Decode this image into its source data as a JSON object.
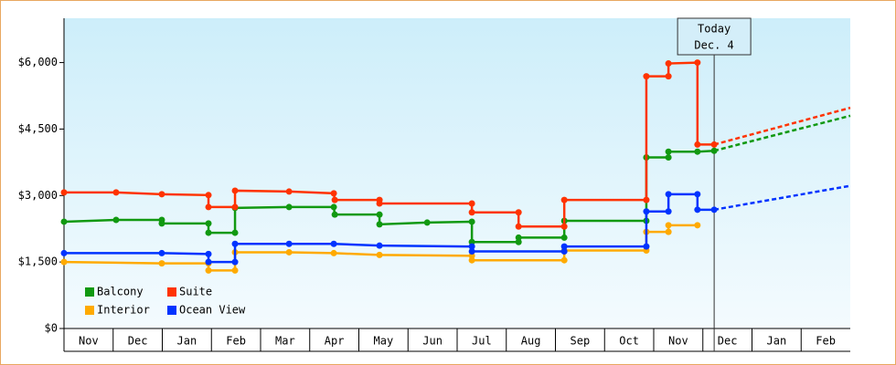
{
  "chart_data": {
    "type": "line",
    "categories": [
      "Nov",
      "Dec",
      "Jan",
      "Feb",
      "Mar",
      "Apr",
      "May",
      "Jun",
      "Jul",
      "Aug",
      "Sep",
      "Oct",
      "Nov",
      "Dec",
      "Jan",
      "Feb"
    ],
    "xlim": [
      0,
      16
    ],
    "ylim": [
      0,
      7000
    ],
    "yticks": [
      {
        "value": 0,
        "label": "$0"
      },
      {
        "value": 1500,
        "label": "$1,500"
      },
      {
        "value": 3000,
        "label": "$3,000"
      },
      {
        "value": 4500,
        "label": "$4,500"
      },
      {
        "value": 6000,
        "label": "$6,000"
      }
    ],
    "legend": "lower left",
    "annotation": {
      "x": 13.23,
      "lines": [
        "Today",
        "Dec. 4"
      ]
    },
    "series": [
      {
        "name": "Balcony",
        "color": "#119911",
        "x": [
          0,
          1.06,
          1.99,
          1.99,
          2.94,
          2.94,
          3.48,
          3.48,
          4.58,
          5.49,
          5.51,
          6.42,
          6.42,
          7.39,
          8.3,
          8.3,
          9.25,
          9.25,
          10.18,
          10.18,
          11.85,
          11.85,
          12.3,
          12.3,
          12.89,
          13.23
        ],
        "values": [
          2410,
          2450,
          2450,
          2370,
          2370,
          2160,
          2160,
          2720,
          2740,
          2740,
          2570,
          2570,
          2350,
          2390,
          2410,
          1950,
          1950,
          2050,
          2050,
          2430,
          2430,
          3860,
          3860,
          3990,
          3990,
          4010
        ],
        "projection_x": [
          13.23,
          16
        ],
        "projection_values": [
          4010,
          4800
        ]
      },
      {
        "name": "Suite",
        "color": "#ff3300",
        "x": [
          0,
          1.06,
          1.99,
          2.94,
          2.94,
          3.48,
          3.48,
          4.58,
          5.49,
          5.51,
          6.42,
          6.42,
          8.3,
          8.3,
          9.25,
          9.25,
          10.18,
          10.18,
          11.85,
          11.85,
          12.3,
          12.3,
          12.89,
          12.89,
          13.23
        ],
        "values": [
          3070,
          3070,
          3030,
          3010,
          2740,
          2740,
          3110,
          3090,
          3050,
          2900,
          2900,
          2820,
          2820,
          2620,
          2620,
          2300,
          2300,
          2900,
          2900,
          5690,
          5690,
          5980,
          6000,
          4150,
          4150
        ],
        "projection_x": [
          13.23,
          16
        ],
        "projection_values": [
          4150,
          4980
        ]
      },
      {
        "name": "Interior",
        "color": "#ffaa00",
        "x": [
          0,
          1.99,
          2.94,
          2.94,
          3.48,
          3.48,
          4.58,
          5.49,
          6.42,
          8.3,
          8.3,
          10.18,
          10.18,
          11.85,
          11.85,
          12.3,
          12.3,
          12.89
        ],
        "values": [
          1500,
          1470,
          1470,
          1310,
          1310,
          1720,
          1720,
          1700,
          1660,
          1640,
          1540,
          1540,
          1760,
          1760,
          2180,
          2180,
          2330,
          2330
        ]
      },
      {
        "name": "Ocean View",
        "color": "#0033ff",
        "x": [
          0,
          1.99,
          2.94,
          2.94,
          3.48,
          3.48,
          4.58,
          5.49,
          6.42,
          8.3,
          8.3,
          10.18,
          10.18,
          11.85,
          11.85,
          12.3,
          12.3,
          12.89,
          12.89,
          13.23
        ],
        "values": [
          1700,
          1700,
          1680,
          1500,
          1500,
          1910,
          1910,
          1910,
          1870,
          1850,
          1740,
          1740,
          1850,
          1850,
          2640,
          2640,
          3030,
          3030,
          2680,
          2680
        ],
        "projection_x": [
          13.23,
          16
        ],
        "projection_values": [
          2680,
          3220
        ]
      }
    ]
  }
}
